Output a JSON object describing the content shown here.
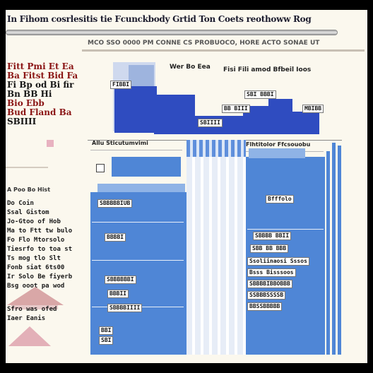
{
  "header": {
    "title": "In Fihom cosrlesitis tie Fcunckbody Grtid Ton Coets reothoww Rog",
    "subtitle": "MCO SSO 0000 PM CONNE CS PROBUOCO, HORE ACTO SONAE UT"
  },
  "left_column": {
    "heading_lines": [
      "Fitt Pmi Et Ea",
      "Ba Fitst Bid Fa",
      "Fi Bp od Bi fir",
      "Bn BB Hi",
      "Bio Ebb",
      "Bud Fland Ba"
    ],
    "heading_tail": "SBIIII",
    "subheading": "A Poo Bo Hist",
    "body_lines": [
      "Do Coin",
      "Ssal Gistom",
      "Jo-Gtoo of Hob",
      "Ma to Ftt tw bulo",
      "Fo Flo Mtorsolo",
      "Tiesrfo to toa st",
      "Ts mog tlo Slt",
      "Fonb siat 6ts00",
      "Ir Solo Be fiyerb",
      "Bsg ooot pa wod"
    ],
    "body2_lines": [
      "Sfro was ofed",
      "Iaer Eanis"
    ]
  },
  "top_chart": {
    "label_top": "Wer Bo Eea",
    "label_right": "Fisi Fili amod Bfbeil Ioos",
    "tag_a": "FIBBI",
    "tag_b": "SBI BBBI",
    "tag_c": "BB BIII",
    "tag_d": "SBIIII",
    "tag_e": "MBIBB"
  },
  "main_panel": {
    "header_left": "Allu Sticutumvimi",
    "header_right": "Flhtitolor Ffcsouobu",
    "tags": {
      "t1": "SBBBBBIUB",
      "t2": "BBBBI",
      "t3": "SBBBBBBI",
      "t4": "BBBII",
      "t5": "SBBBBIIII",
      "t6": "BBI",
      "t7": "SBI"
    },
    "right_texts": [
      "Bfffolo",
      "SBBBB BBII",
      "SBB BB BBB",
      "Ssoliinaosi Sssos",
      "Bsss Bisssoos",
      "SBBBBIBBOBBB",
      "SSBBBSSSSB",
      "BBSSBBBBB"
    ],
    "y_ticks": [
      "",
      "",
      "",
      "",
      "",
      ""
    ]
  },
  "colors": {
    "page": "#fbf8ee",
    "blue_dark": "#2f4cc0",
    "blue": "#4f86d6",
    "accent_red": "#8a1414"
  }
}
